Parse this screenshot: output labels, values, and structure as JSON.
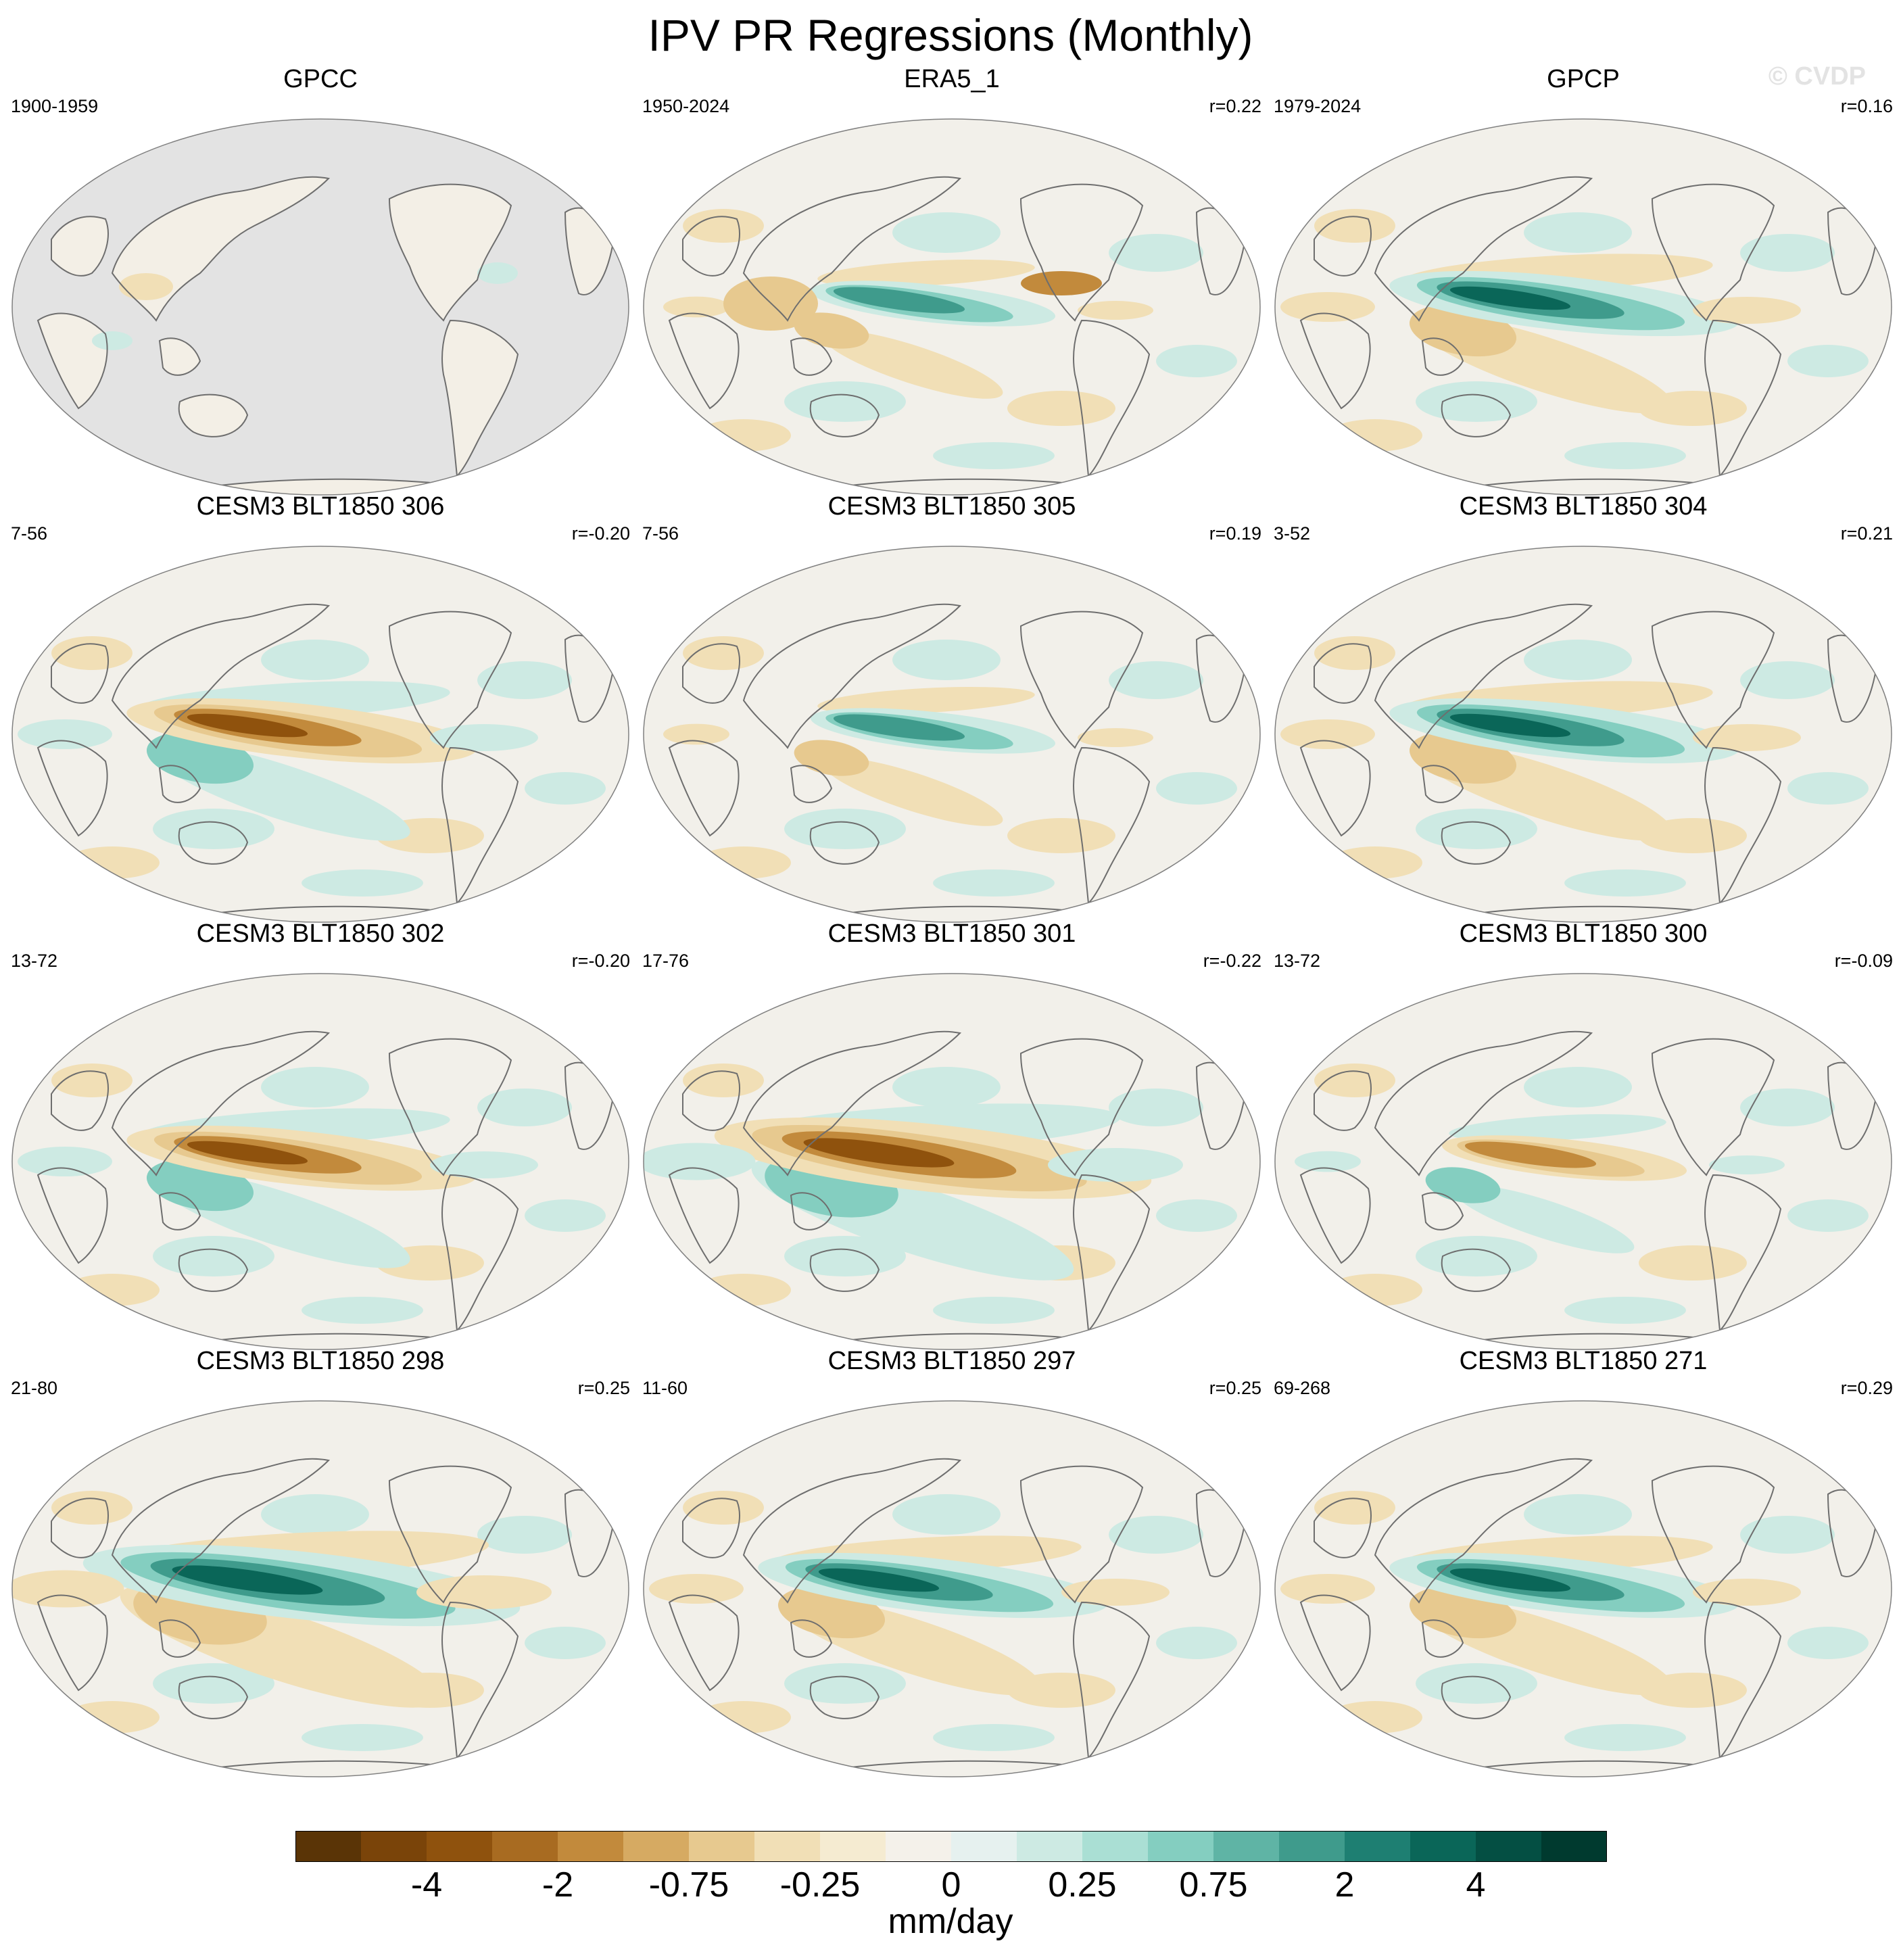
{
  "title": "IPV PR Regressions (Monthly)",
  "watermark": "© CVDP",
  "panels": [
    {
      "title": "GPCC",
      "period": "1900-1959",
      "corr": "",
      "land_only": true,
      "pattern": "weak"
    },
    {
      "title": "ERA5_1",
      "period": "1950-2024",
      "corr": "r=0.22",
      "land_only": false,
      "pattern": "era5"
    },
    {
      "title": "GPCP",
      "period": "1979-2024",
      "corr": "r=0.16",
      "land_only": false,
      "pattern": "gpcp"
    },
    {
      "title": "CESM3 BLT1850 306",
      "period": "7-56",
      "corr": "r=-0.20",
      "land_only": false,
      "pattern": "neg"
    },
    {
      "title": "CESM3 BLT1850 305",
      "period": "7-56",
      "corr": "r=0.19",
      "land_only": false,
      "pattern": "weakpos"
    },
    {
      "title": "CESM3 BLT1850 304",
      "period": "3-52",
      "corr": "r=0.21",
      "land_only": false,
      "pattern": "pos"
    },
    {
      "title": "CESM3 BLT1850 302",
      "period": "13-72",
      "corr": "r=-0.20",
      "land_only": false,
      "pattern": "neg"
    },
    {
      "title": "CESM3 BLT1850 301",
      "period": "17-76",
      "corr": "r=-0.22",
      "land_only": false,
      "pattern": "strongneg"
    },
    {
      "title": "CESM3 BLT1850 300",
      "period": "13-72",
      "corr": "r=-0.09",
      "land_only": false,
      "pattern": "weakneg"
    },
    {
      "title": "CESM3 BLT1850 298",
      "period": "21-80",
      "corr": "r=0.25",
      "land_only": false,
      "pattern": "strongpos"
    },
    {
      "title": "CESM3 BLT1850 297",
      "period": "11-60",
      "corr": "r=0.25",
      "land_only": false,
      "pattern": "pos"
    },
    {
      "title": "CESM3 BLT1850 271",
      "period": "69-268",
      "corr": "r=0.29",
      "land_only": false,
      "pattern": "pos"
    }
  ],
  "colorbar": {
    "units": "mm/day",
    "colors": [
      "#5a3406",
      "#7a4409",
      "#8f520d",
      "#a86b21",
      "#c28a3c",
      "#d6aa62",
      "#e7c98f",
      "#f1dfb6",
      "#f5ebd1",
      "#f4f1ea",
      "#e6f1ef",
      "#cdeae3",
      "#aadfd4",
      "#84cec0",
      "#5fb4a5",
      "#3f9b8c",
      "#1e7f72",
      "#0a6658",
      "#044f43",
      "#003a2f"
    ],
    "ticks": [
      {
        "label": "-4",
        "boundary": 2
      },
      {
        "label": "-2",
        "boundary": 4
      },
      {
        "label": "-0.75",
        "boundary": 6
      },
      {
        "label": "-0.25",
        "boundary": 8
      },
      {
        "label": "0",
        "boundary": 10
      },
      {
        "label": "0.25",
        "boundary": 12
      },
      {
        "label": "0.75",
        "boundary": 14
      },
      {
        "label": "2",
        "boundary": 16
      },
      {
        "label": "4",
        "boundary": 18
      }
    ]
  }
}
